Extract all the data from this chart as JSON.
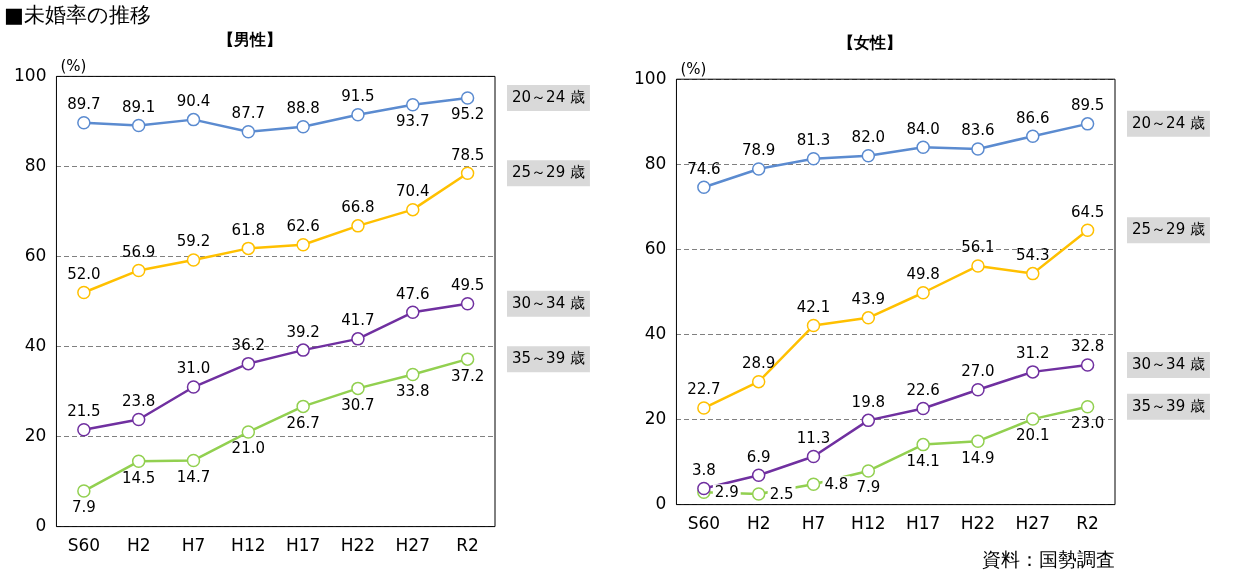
{
  "chart_data": [
    {
      "type": "line",
      "title": "■未婚率の推移",
      "subtitle": "【男性】",
      "ylabel": "(%)",
      "categories": [
        "S60",
        "H2",
        "H7",
        "H12",
        "H17",
        "H22",
        "H27",
        "R2"
      ],
      "ylim": [
        0,
        100
      ],
      "yticks": [
        0,
        20,
        40,
        60,
        80,
        100
      ],
      "grid": "y",
      "marker": "circle",
      "line_style": "solid",
      "legend": "right",
      "series": [
        {
          "name": "20～24 歳",
          "color": "#5b8bd0",
          "values": [
            89.7,
            89.1,
            90.4,
            87.7,
            88.8,
            91.5,
            93.7,
            95.2
          ],
          "value_labels": [
            "89.7",
            "89.1",
            "90.4",
            "87.7",
            "88.8",
            "91.5",
            "93.7",
            "95.2"
          ]
        },
        {
          "name": "25～29 歳",
          "color": "#ffc000",
          "values": [
            52.0,
            56.9,
            59.2,
            61.8,
            62.6,
            66.8,
            70.4,
            78.5
          ],
          "value_labels": [
            "52.0",
            "56.9",
            "59.2",
            "61.8",
            "62.6",
            "66.8",
            "70.4",
            "78.5"
          ]
        },
        {
          "name": "30～34 歳",
          "color": "#7030a0",
          "values": [
            21.5,
            23.8,
            31.0,
            36.2,
            39.2,
            41.7,
            47.6,
            49.5
          ],
          "value_labels": [
            "21.5",
            "23.8",
            "31.0",
            "36.2",
            "39.2",
            "41.7",
            "47.6",
            "49.5"
          ]
        },
        {
          "name": "35～39 歳",
          "color": "#92d050",
          "values": [
            7.9,
            14.5,
            14.7,
            21.0,
            26.7,
            30.7,
            33.8,
            37.2
          ],
          "value_labels": [
            "7.9",
            "14.5",
            "14.7",
            "21.0",
            "26.7",
            "30.7",
            "33.8",
            "37.2"
          ]
        }
      ]
    },
    {
      "type": "line",
      "title": "【女性】",
      "ylabel": "(%)",
      "categories": [
        "S60",
        "H2",
        "H7",
        "H12",
        "H17",
        "H22",
        "H27",
        "R2"
      ],
      "ylim": [
        0,
        100
      ],
      "yticks": [
        0,
        20,
        40,
        60,
        80,
        100
      ],
      "grid": "y",
      "marker": "circle",
      "line_style": "solid",
      "legend": "right",
      "annotations": [
        "資料：国勢調査"
      ],
      "series": [
        {
          "name": "20～24 歳",
          "color": "#5b8bd0",
          "values": [
            74.6,
            78.9,
            81.3,
            82.0,
            84.0,
            83.6,
            86.6,
            89.5
          ],
          "value_labels": [
            "74.6",
            "78.9",
            "81.3",
            "82.0",
            "84.0",
            "83.6",
            "86.6",
            "89.5"
          ]
        },
        {
          "name": "25～29 歳",
          "color": "#ffc000",
          "values": [
            22.7,
            28.9,
            42.1,
            43.9,
            49.8,
            56.1,
            54.3,
            64.5
          ],
          "value_labels": [
            "22.7",
            "28.9",
            "42.1",
            "43.9",
            "49.8",
            "56.1",
            "54.3",
            "64.5"
          ]
        },
        {
          "name": "30～34 歳",
          "color": "#7030a0",
          "values": [
            3.8,
            6.9,
            11.3,
            19.8,
            22.6,
            27.0,
            31.2,
            32.8
          ],
          "value_labels": [
            "3.8",
            "6.9",
            "11.3",
            "19.8",
            "22.6",
            "27.0",
            "31.2",
            "32.8"
          ]
        },
        {
          "name": "35～39 歳",
          "color": "#92d050",
          "values": [
            2.9,
            2.5,
            4.8,
            7.9,
            14.1,
            14.9,
            20.1,
            23.0
          ],
          "value_labels": [
            "2.9",
            "2.5",
            "4.8",
            "7.9",
            "14.1",
            "14.9",
            "20.1",
            "23.0"
          ]
        }
      ]
    }
  ]
}
